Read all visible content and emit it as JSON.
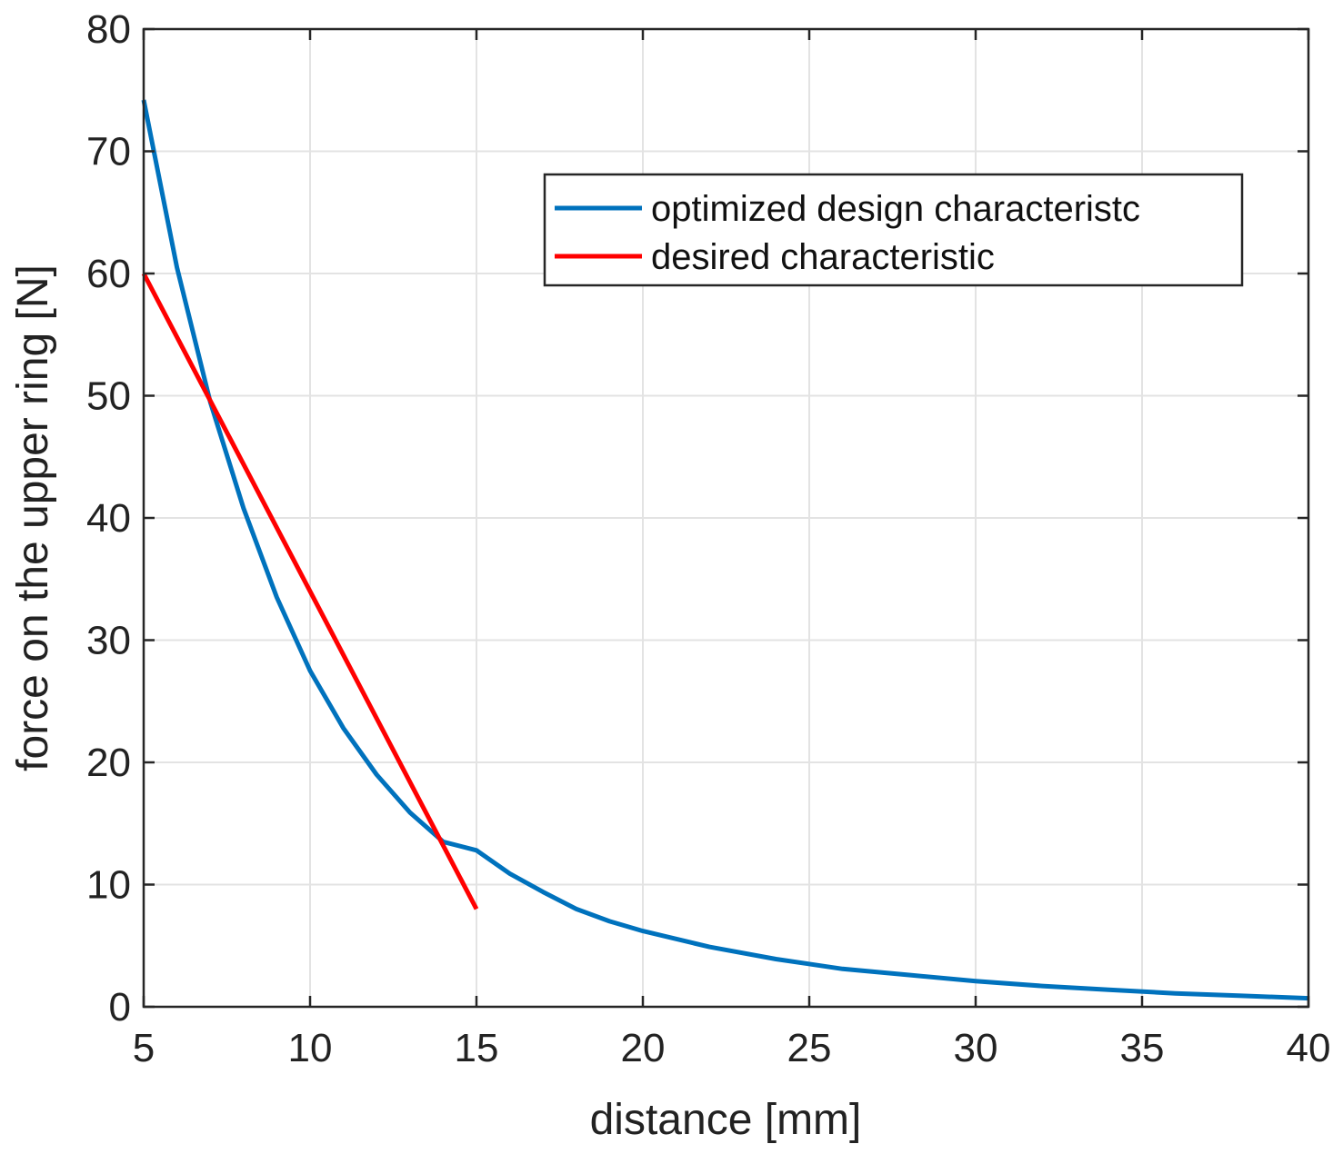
{
  "chart_data": {
    "type": "line",
    "title": "",
    "xlabel": "distance [mm]",
    "ylabel": "force on the upper ring [N]",
    "xlim": [
      5,
      40
    ],
    "ylim": [
      0,
      80
    ],
    "xticks": [
      5,
      10,
      15,
      20,
      25,
      30,
      35,
      40
    ],
    "yticks": [
      0,
      10,
      20,
      30,
      40,
      50,
      60,
      70,
      80
    ],
    "xtick_labels": [
      "5",
      "10",
      "15",
      "20",
      "25",
      "30",
      "35",
      "40"
    ],
    "ytick_labels": [
      "0",
      "10",
      "20",
      "30",
      "40",
      "50",
      "60",
      "70",
      "80"
    ],
    "grid": true,
    "legend_position": "upper-right",
    "series": [
      {
        "name": "optimized design characteristc",
        "color": "#0072BD",
        "x": [
          5,
          6,
          7,
          8,
          9,
          10,
          11,
          12,
          13,
          14,
          15,
          16,
          17,
          18,
          19,
          20,
          22,
          24,
          26,
          28,
          30,
          32,
          34,
          36,
          38,
          40
        ],
        "y": [
          74.2,
          60.5,
          49.5,
          40.8,
          33.5,
          27.5,
          22.8,
          19.0,
          15.9,
          13.5,
          12.8,
          10.9,
          9.4,
          8.0,
          7.0,
          6.2,
          4.9,
          3.9,
          3.1,
          2.6,
          2.1,
          1.7,
          1.4,
          1.1,
          0.9,
          0.7
        ]
      },
      {
        "name": "desired characteristic",
        "color": "#FF0000",
        "x": [
          5,
          15
        ],
        "y": [
          60,
          8
        ]
      }
    ]
  }
}
